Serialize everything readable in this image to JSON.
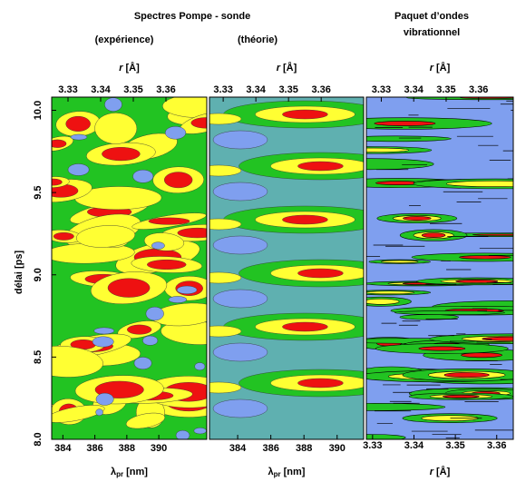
{
  "figure": {
    "title": "Spectres Pompe - sonde",
    "ylabel": "délai [ps]"
  },
  "chart_data": [
    {
      "type": "contour",
      "subtitle": "(expérience)",
      "background": "#22c322",
      "colors": [
        "#7f9fef",
        "#ffff33",
        "#ee1111"
      ],
      "x2label_symbol": "r",
      "x2label_unit": "[Å]",
      "xlabel_symbol": "λ",
      "xlabel_sub": "pr",
      "xlabel_unit": "[nm]",
      "xlim": [
        383.3,
        393.0
      ],
      "xticks": [
        384,
        386,
        388,
        390
      ],
      "x2lim": [
        3.325,
        3.3725
      ],
      "x2ticks": [
        3.33,
        3.34,
        3.35,
        3.36
      ],
      "ylim": [
        8.0,
        10.08
      ],
      "yticks": [
        {
          "value": 8,
          "label": "8.0"
        },
        8.5,
        {
          "value": 9,
          "label": "9.0"
        },
        9.5,
        {
          "value": 10,
          "label": "10.0"
        }
      ]
    },
    {
      "type": "contour",
      "subtitle": "(théorie)",
      "background": "#5fb0b0",
      "colors": [
        "#7f9fef",
        "#22c322",
        "#ffff33",
        "#ee1111"
      ],
      "x2label_symbol": "r",
      "x2label_unit": "[Å]",
      "xlabel_symbol": "λ",
      "xlabel_sub": "pr",
      "xlabel_unit": "[nm]",
      "xlim": [
        382.3,
        391.6
      ],
      "xticks": [
        384,
        386,
        388,
        390
      ],
      "x2lim": [
        3.3258,
        3.373
      ],
      "x2ticks": [
        3.33,
        3.34,
        3.35,
        3.36
      ],
      "ylim": [
        8.0,
        10.08
      ]
    },
    {
      "type": "contour",
      "title_lines": [
        "Paquet d’ondes",
        "vibrationnel"
      ],
      "background": "#7f9fef",
      "colors": [
        "#22c322",
        "#ffff33",
        "#ee1111"
      ],
      "x2label_symbol": "r",
      "x2label_unit": "[Å]",
      "xlabel_symbol": "r",
      "xlabel_unit": "[Å]",
      "xlim": [
        3.3285,
        3.364
      ],
      "xticks": [
        3.33,
        3.34,
        3.35,
        3.36
      ],
      "x2lim": [
        3.3254,
        3.3707
      ],
      "x2ticks": [
        3.33,
        3.34,
        3.35,
        3.36
      ],
      "ylim": [
        8.0,
        10.08
      ]
    }
  ]
}
